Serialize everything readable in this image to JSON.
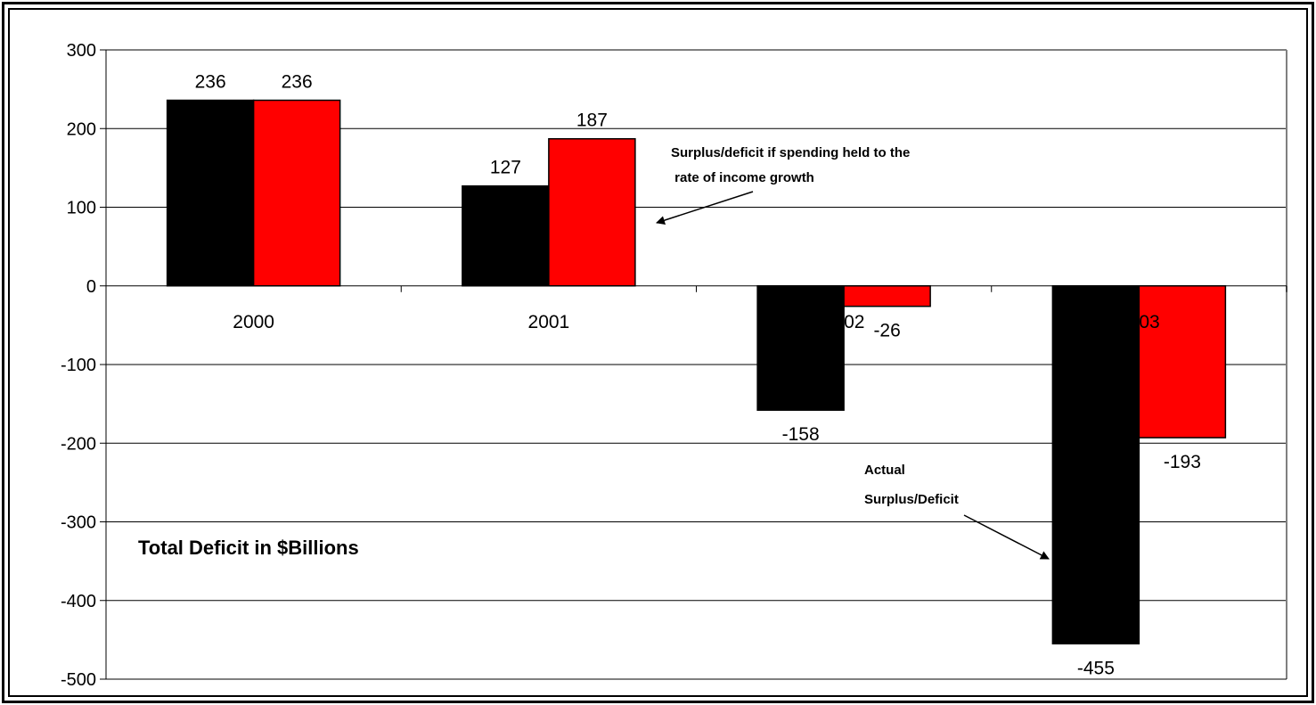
{
  "chart_data": {
    "type": "bar",
    "categories": [
      "2000",
      "2001",
      "2002",
      "2003"
    ],
    "series": [
      {
        "values": [
          236,
          127,
          -158,
          -455
        ],
        "color": "#000000"
      },
      {
        "values": [
          236,
          187,
          -26,
          -193
        ],
        "color": "#ff0000"
      }
    ],
    "ylim": [
      -500,
      300
    ],
    "yticks": [
      300,
      200,
      100,
      0,
      -100,
      -200,
      -300,
      -400,
      -500
    ],
    "grid": true,
    "title": "Total Deficit in $Billions",
    "annotations": [
      {
        "text_lines": [
          "Surplus/deficit if spending held to the",
          " rate of income growth"
        ],
        "target": "second series"
      },
      {
        "text_lines": [
          "Actual",
          "Surplus/Deficit"
        ],
        "target": "first series"
      }
    ]
  }
}
